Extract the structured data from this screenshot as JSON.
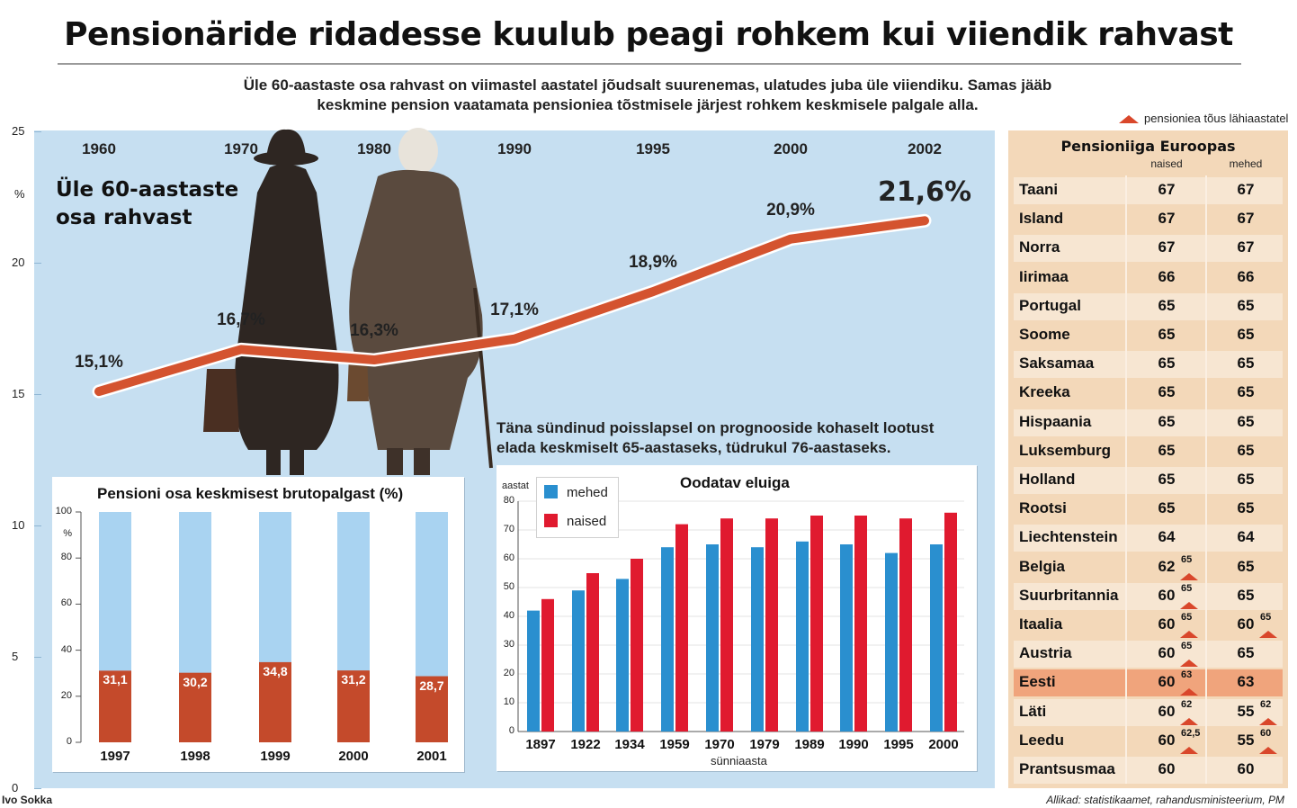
{
  "title": "Pensionäride ridadesse kuulub peagi rohkem kui viiendik rahvast",
  "subtitle": "Üle 60-aastaste osa rahvast on viimastel aastatel jõudsalt suurenemas, ulatudes juba üle viiendiku. Samas jääb keskmine pension vaatamata pensioniea tõstmisele järjest rohkem keskmisele palgale alla.",
  "legend_note": "pensioniea tõus lähiaastatel",
  "note": "Täna sündinud poisslapsel on prognooside kohaselt lootust elada keskmiselt 65-aastaseks, tüdrukul 76-aastaseks.",
  "credit": "Ivo Sokka",
  "sources": "Allikad: statistikaamet, rahandusministeerium, PM",
  "colors": {
    "line": "#d4532f",
    "panel": "#c6dff1",
    "bar_blue": "#2a8fcf",
    "bar_red": "#e01a2f",
    "bar_light": "#a9d3f1",
    "bar_brown": "#c44a2b",
    "table_bg": "#f3d8b9",
    "highlight": "#f0a47c"
  },
  "chart_data": [
    {
      "type": "line",
      "title": "Üle 60-aastaste osa rahvast",
      "ylabel": "%",
      "ylim": [
        0,
        25
      ],
      "yticks": [
        "0",
        "5",
        "10",
        "15",
        "20",
        "25"
      ],
      "categories": [
        "1960",
        "1970",
        "1980",
        "1990",
        "1995",
        "2000",
        "2002"
      ],
      "values": [
        15.1,
        16.7,
        16.3,
        17.1,
        18.9,
        20.9,
        21.6
      ],
      "labels": [
        "15,1%",
        "16,7%",
        "16,3%",
        "17,1%",
        "18,9%",
        "20,9%",
        "21,6%"
      ]
    },
    {
      "type": "bar",
      "title": "Pensioni osa keskmisest brutopalgast (%)",
      "ylabel": "%",
      "ylim": [
        0,
        100
      ],
      "yticks": [
        "0",
        "20",
        "40",
        "60",
        "80",
        "100"
      ],
      "categories": [
        "1997",
        "1998",
        "1999",
        "2000",
        "2001"
      ],
      "values": [
        31.1,
        30.2,
        34.8,
        31.2,
        28.7
      ],
      "labels": [
        "31,1",
        "30,2",
        "34,8",
        "31,2",
        "28,7"
      ]
    },
    {
      "type": "bar",
      "title": "Oodatav eluiga",
      "ylabel": "aastat",
      "xlabel": "sünniaasta",
      "ylim": [
        0,
        80
      ],
      "yticks": [
        "0",
        "10",
        "20",
        "30",
        "40",
        "50",
        "60",
        "70",
        "80"
      ],
      "categories": [
        "1897",
        "1922",
        "1934",
        "1959",
        "1970",
        "1979",
        "1989",
        "1990",
        "1995",
        "2000"
      ],
      "series": [
        {
          "name": "mehed",
          "values": [
            42,
            49,
            53,
            64,
            65,
            64,
            66,
            65,
            62,
            65
          ]
        },
        {
          "name": "naised",
          "values": [
            46,
            55,
            60,
            72,
            74,
            74,
            75,
            75,
            74,
            76
          ]
        }
      ]
    },
    {
      "type": "table",
      "title": "Pensioniiga Euroopas",
      "columns": [
        "naised",
        "mehed"
      ],
      "rows": [
        {
          "country": "Taani",
          "naised": "67",
          "mehed": "67"
        },
        {
          "country": "Island",
          "naised": "67",
          "mehed": "67"
        },
        {
          "country": "Norra",
          "naised": "67",
          "mehed": "67"
        },
        {
          "country": "Iirimaa",
          "naised": "66",
          "mehed": "66"
        },
        {
          "country": "Portugal",
          "naised": "65",
          "mehed": "65"
        },
        {
          "country": "Soome",
          "naised": "65",
          "mehed": "65"
        },
        {
          "country": "Saksamaa",
          "naised": "65",
          "mehed": "65"
        },
        {
          "country": "Kreeka",
          "naised": "65",
          "mehed": "65"
        },
        {
          "country": "Hispaania",
          "naised": "65",
          "mehed": "65"
        },
        {
          "country": "Luksemburg",
          "naised": "65",
          "mehed": "65"
        },
        {
          "country": "Holland",
          "naised": "65",
          "mehed": "65"
        },
        {
          "country": "Rootsi",
          "naised": "65",
          "mehed": "65"
        },
        {
          "country": "Liechtenstein",
          "naised": "64",
          "mehed": "64"
        },
        {
          "country": "Belgia",
          "naised": "62",
          "naised_future": "65",
          "mehed": "65"
        },
        {
          "country": "Suurbritannia",
          "naised": "60",
          "naised_future": "65",
          "mehed": "65"
        },
        {
          "country": "Itaalia",
          "naised": "60",
          "naised_future": "65",
          "mehed": "60",
          "mehed_future": "65"
        },
        {
          "country": "Austria",
          "naised": "60",
          "naised_future": "65",
          "mehed": "65"
        },
        {
          "country": "Eesti",
          "naised": "60",
          "naised_future": "63",
          "mehed": "63",
          "highlight": true
        },
        {
          "country": "Läti",
          "naised": "60",
          "naised_future": "62",
          "mehed": "55",
          "mehed_future": "62"
        },
        {
          "country": "Leedu",
          "naised": "60",
          "naised_future": "62,5",
          "mehed": "55",
          "mehed_future": "60"
        },
        {
          "country": "Prantsusmaa",
          "naised": "60",
          "mehed": "60"
        }
      ]
    }
  ]
}
